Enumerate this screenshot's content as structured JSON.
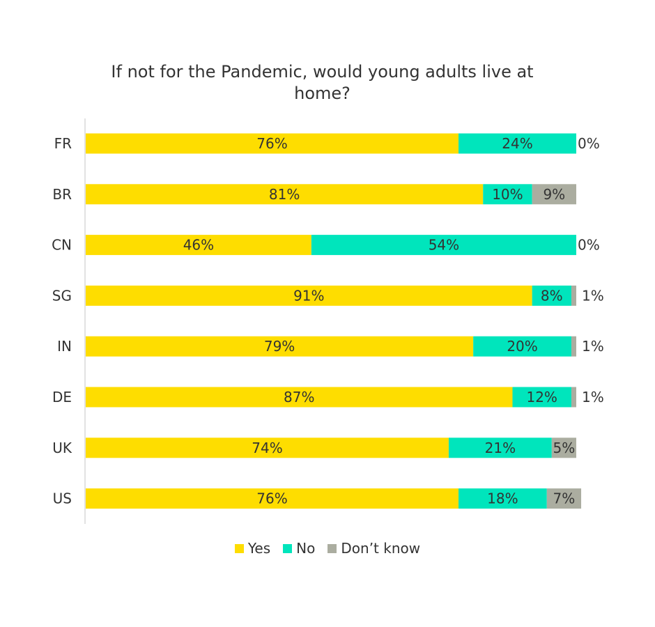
{
  "chart_data": {
    "type": "bar",
    "orientation": "horizontal",
    "stacked": true,
    "title": "If not for the Pandemic, would young adults live at home?",
    "categories": [
      "FR",
      "BR",
      "CN",
      "SG",
      "IN",
      "DE",
      "UK",
      "US"
    ],
    "series": [
      {
        "name": "Yes",
        "color": "#FEDD00",
        "values": [
          76,
          81,
          46,
          91,
          79,
          87,
          74,
          76
        ],
        "labels": [
          "76%",
          "81%",
          "46%",
          "91%",
          "79%",
          "87%",
          "74%",
          "76%"
        ]
      },
      {
        "name": "No",
        "color": "#00E5BC",
        "values": [
          24,
          10,
          54,
          8,
          20,
          12,
          21,
          18
        ],
        "labels": [
          "24%",
          "10%",
          "54%",
          "8%",
          "20%",
          "12%",
          "21%",
          "18%"
        ]
      },
      {
        "name": "Don’t know",
        "color": "#ABADA0",
        "values": [
          0,
          9,
          0,
          1,
          1,
          1,
          5,
          7
        ],
        "labels": [
          "0%",
          "9%",
          "0%",
          "1%",
          "1%",
          "1%",
          "5%",
          "7%"
        ]
      }
    ],
    "xlim": [
      0,
      100
    ],
    "grid": false,
    "legend_position": "bottom"
  }
}
